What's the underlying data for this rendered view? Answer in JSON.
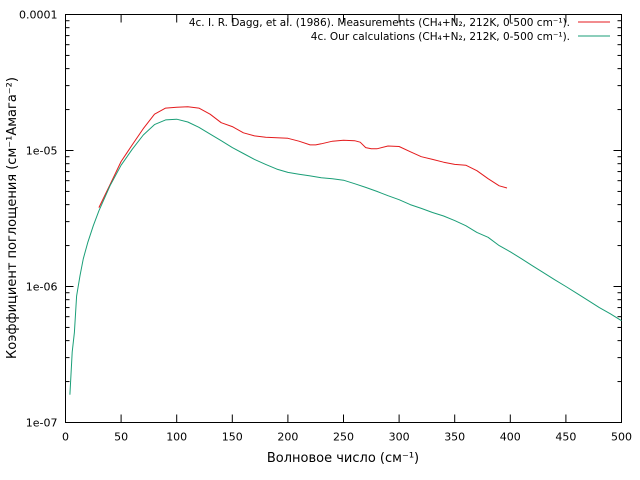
{
  "chart_data": {
    "type": "line",
    "xlabel": "Волновое число (см⁻¹)",
    "ylabel": "Коэффициент поглощения (см⁻¹Амага⁻²)",
    "xlim": [
      0,
      500
    ],
    "ylim": [
      1e-07,
      0.0001
    ],
    "yscale": "log",
    "grid": false,
    "legend_position": "top-right",
    "x_ticks": [
      {
        "value": 0,
        "label": "0"
      },
      {
        "value": 50,
        "label": "50"
      },
      {
        "value": 100,
        "label": "100"
      },
      {
        "value": 150,
        "label": "150"
      },
      {
        "value": 200,
        "label": "200"
      },
      {
        "value": 250,
        "label": "250"
      },
      {
        "value": 300,
        "label": "300"
      },
      {
        "value": 350,
        "label": "350"
      },
      {
        "value": 400,
        "label": "400"
      },
      {
        "value": 450,
        "label": "450"
      },
      {
        "value": 500,
        "label": "500"
      }
    ],
    "y_ticks": [
      {
        "value": 1e-07,
        "label": "1e-07"
      },
      {
        "value": 1e-06,
        "label": "1e-06"
      },
      {
        "value": 1e-05,
        "label": "1e-05"
      },
      {
        "value": 0.0001,
        "label": "0.0001"
      }
    ],
    "series": [
      {
        "name": "4c. I. R. Dagg, et al. (1986). Measurements (CH₄+N₂, 212K, 0-500 cm⁻¹).",
        "color": "#e41a1c",
        "x": [
          30,
          40,
          50,
          60,
          70,
          80,
          90,
          100,
          110,
          120,
          130,
          140,
          150,
          160,
          170,
          180,
          190,
          200,
          210,
          220,
          225,
          230,
          240,
          250,
          260,
          265,
          270,
          275,
          280,
          290,
          300,
          310,
          320,
          330,
          340,
          350,
          360,
          370,
          380,
          390,
          397
        ],
        "y": [
          3.8e-06,
          5.6e-06,
          8.3e-06,
          1.1e-05,
          1.45e-05,
          1.85e-05,
          2.05e-05,
          2.08e-05,
          2.1e-05,
          2.05e-05,
          1.85e-05,
          1.6e-05,
          1.5e-05,
          1.35e-05,
          1.28e-05,
          1.25e-05,
          1.24e-05,
          1.23e-05,
          1.17e-05,
          1.1e-05,
          1.1e-05,
          1.12e-05,
          1.17e-05,
          1.19e-05,
          1.18e-05,
          1.15e-05,
          1.05e-05,
          1.03e-05,
          1.03e-05,
          1.08e-05,
          1.07e-05,
          9.8e-06,
          9e-06,
          8.6e-06,
          8.2e-06,
          7.9e-06,
          7.8e-06,
          7.1e-06,
          6.2e-06,
          5.5e-06,
          5.3e-06
        ]
      },
      {
        "name": "4c. Our  calculations (CH₄+N₂, 212K, 0-500 cm⁻¹).",
        "color": "#1a9e77",
        "x": [
          4,
          6,
          8,
          10,
          13,
          16,
          20,
          25,
          30,
          40,
          50,
          60,
          70,
          80,
          90,
          100,
          110,
          120,
          130,
          140,
          150,
          160,
          170,
          180,
          190,
          200,
          210,
          220,
          230,
          240,
          250,
          260,
          270,
          280,
          290,
          300,
          310,
          320,
          330,
          340,
          350,
          360,
          370,
          380,
          390,
          400,
          410,
          420,
          430,
          440,
          450,
          460,
          470,
          480,
          490,
          500
        ],
        "y": [
          1.6e-07,
          3.3e-07,
          4.6e-07,
          8.5e-07,
          1.2e-06,
          1.6e-06,
          2.1e-06,
          2.8e-06,
          3.6e-06,
          5.5e-06,
          7.8e-06,
          1.02e-05,
          1.3e-05,
          1.55e-05,
          1.68e-05,
          1.7e-05,
          1.62e-05,
          1.48e-05,
          1.32e-05,
          1.18e-05,
          1.05e-05,
          9.5e-06,
          8.6e-06,
          7.9e-06,
          7.3e-06,
          6.9e-06,
          6.7e-06,
          6.5e-06,
          6.3e-06,
          6.2e-06,
          6.05e-06,
          5.7e-06,
          5.35e-06,
          5e-06,
          4.65e-06,
          4.35e-06,
          4e-06,
          3.75e-06,
          3.5e-06,
          3.3e-06,
          3.05e-06,
          2.8e-06,
          2.5e-06,
          2.3e-06,
          2e-06,
          1.8e-06,
          1.6e-06,
          1.42e-06,
          1.26e-06,
          1.12e-06,
          1e-06,
          8.9e-07,
          7.9e-07,
          7e-07,
          6.3e-07,
          5.6e-07
        ]
      }
    ]
  }
}
